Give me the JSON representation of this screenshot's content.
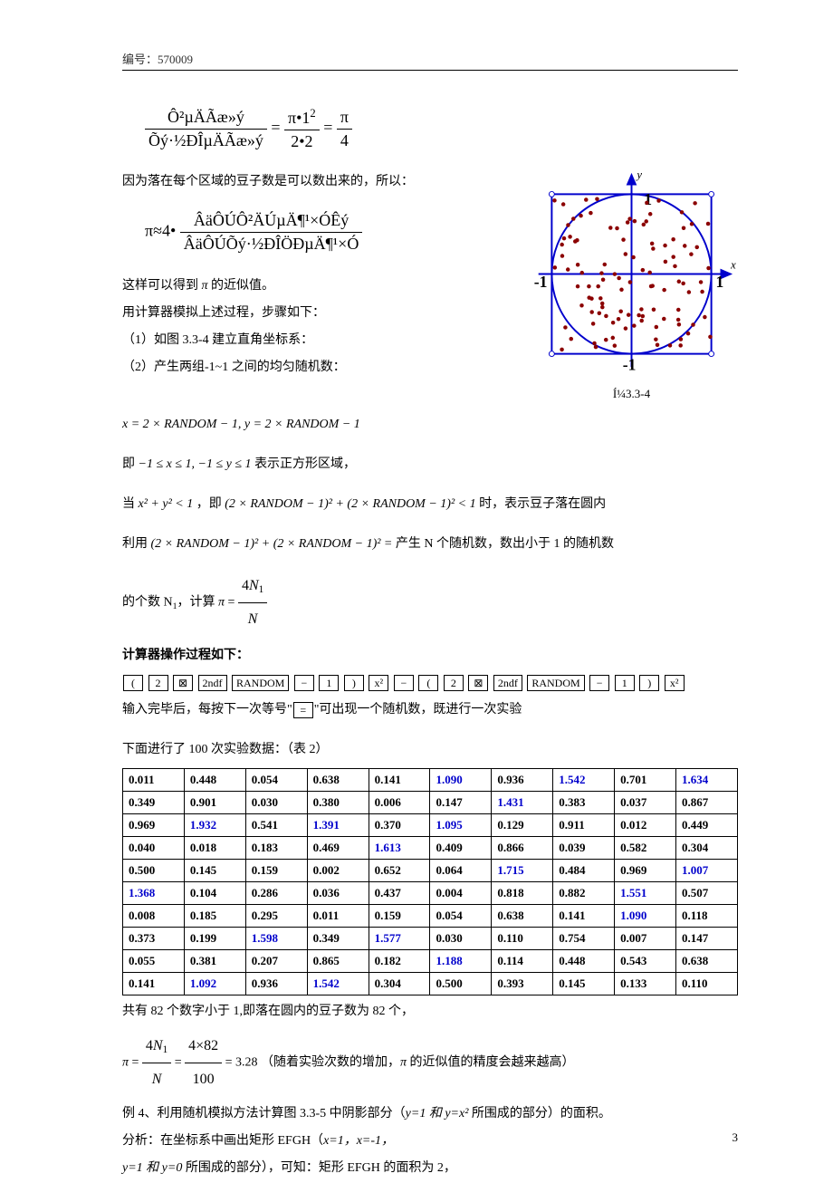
{
  "header": "编号：570009",
  "eq1": {
    "n1": "Ô²µÄÃæ»ý",
    "d1": "Õý·½ÐÎµÄÃæ»ý",
    "n2": "π•1",
    "d2": "2•2",
    "n3": "π",
    "d3": "4"
  },
  "p1": "因为落在每个区域的豆子数是可以数出来的，所以：",
  "eq2": {
    "pre": "π≈4•",
    "n": "ÂäÔÚÔ²ÄÚµÄ¶¹×ÓÊý",
    "d": "ÂäÔÚÕý·½ÐÎÖÐµÄ¶¹×Ó"
  },
  "p2a": "这样可以得到",
  "p2b": "的近似值。",
  "p3": "用计算器模拟上述过程，步骤如下：",
  "p4": "（1）如图 3.3-4 建立直角坐标系：",
  "p5": "（2）产生两组-1~1 之间的均匀随机数：",
  "eq3": "x = 2 × RANDOM − 1, y = 2 × RANDOM − 1",
  "p6a": "即",
  "p6b": "−1 ≤ x ≤ 1, −1 ≤ y ≤ 1",
  "p6c": "表示正方形区域，",
  "p7a": "当",
  "p7b": "x² + y² < 1",
  "p7c": "，即",
  "p7d": "(2 × RANDOM − 1)² + (2 × RANDOM − 1)² < 1",
  "p7e": "时，表示豆子落在圆内",
  "p8a": "利用",
  "p8b": "(2 × RANDOM − 1)² + (2 × RANDOM − 1)² =",
  "p8c": "产生 N 个随机数，数出小于 1 的随机数",
  "p9a": "的个数 N",
  "p9b": "，计算",
  "eq4": {
    "n": "4N₁",
    "d": "N"
  },
  "p10": "计算器操作过程如下：",
  "keySeq": [
    "(",
    "2",
    "⊠",
    "2ndf",
    "RANDOM",
    "−",
    "1",
    ")",
    "x²",
    "−",
    "(",
    "2",
    "⊠",
    "2ndf",
    "RANDOM",
    "−",
    "1",
    ")",
    "x²"
  ],
  "p11a": "输入完毕后，每按下一次等号\"",
  "p11b": "\"可出现一个随机数，既进行一次实验",
  "p12": "下面进行了 100 次实验数据：（表 2）",
  "table": {
    "rows": [
      [
        {
          "v": "0.011"
        },
        {
          "v": "0.448"
        },
        {
          "v": "0.054"
        },
        {
          "v": "0.638"
        },
        {
          "v": "0.141"
        },
        {
          "v": "1.090",
          "b": 1
        },
        {
          "v": "0.936"
        },
        {
          "v": "1.542",
          "b": 1
        },
        {
          "v": "0.701"
        },
        {
          "v": "1.634",
          "b": 1
        }
      ],
      [
        {
          "v": "0.349"
        },
        {
          "v": "0.901"
        },
        {
          "v": "0.030"
        },
        {
          "v": "0.380"
        },
        {
          "v": "0.006"
        },
        {
          "v": "0.147"
        },
        {
          "v": "1.431",
          "b": 1
        },
        {
          "v": "0.383"
        },
        {
          "v": "0.037"
        },
        {
          "v": "0.867"
        }
      ],
      [
        {
          "v": "0.969"
        },
        {
          "v": "1.932",
          "b": 1
        },
        {
          "v": "0.541"
        },
        {
          "v": "1.391",
          "b": 1
        },
        {
          "v": "0.370"
        },
        {
          "v": "1.095",
          "b": 1
        },
        {
          "v": "0.129"
        },
        {
          "v": "0.911"
        },
        {
          "v": "0.012"
        },
        {
          "v": "0.449"
        }
      ],
      [
        {
          "v": "0.040"
        },
        {
          "v": "0.018"
        },
        {
          "v": "0.183"
        },
        {
          "v": "0.469"
        },
        {
          "v": "1.613",
          "b": 1
        },
        {
          "v": "0.409"
        },
        {
          "v": "0.866"
        },
        {
          "v": "0.039"
        },
        {
          "v": "0.582"
        },
        {
          "v": "0.304"
        }
      ],
      [
        {
          "v": "0.500"
        },
        {
          "v": "0.145"
        },
        {
          "v": "0.159"
        },
        {
          "v": "0.002"
        },
        {
          "v": "0.652"
        },
        {
          "v": "0.064"
        },
        {
          "v": "1.715",
          "b": 1
        },
        {
          "v": "0.484"
        },
        {
          "v": "0.969"
        },
        {
          "v": "1.007",
          "b": 1
        }
      ],
      [
        {
          "v": "1.368",
          "b": 1
        },
        {
          "v": "0.104"
        },
        {
          "v": "0.286"
        },
        {
          "v": "0.036"
        },
        {
          "v": "0.437"
        },
        {
          "v": "0.004"
        },
        {
          "v": "0.818"
        },
        {
          "v": "0.882"
        },
        {
          "v": "1.551",
          "b": 1
        },
        {
          "v": "0.507"
        }
      ],
      [
        {
          "v": "0.008"
        },
        {
          "v": "0.185"
        },
        {
          "v": "0.295"
        },
        {
          "v": "0.011"
        },
        {
          "v": "0.159"
        },
        {
          "v": "0.054"
        },
        {
          "v": "0.638"
        },
        {
          "v": "0.141"
        },
        {
          "v": "1.090",
          "b": 1
        },
        {
          "v": "0.118"
        }
      ],
      [
        {
          "v": "0.373"
        },
        {
          "v": "0.199"
        },
        {
          "v": "1.598",
          "b": 1
        },
        {
          "v": "0.349"
        },
        {
          "v": "1.577",
          "b": 1
        },
        {
          "v": "0.030"
        },
        {
          "v": "0.110"
        },
        {
          "v": "0.754"
        },
        {
          "v": "0.007"
        },
        {
          "v": "0.147"
        }
      ],
      [
        {
          "v": "0.055"
        },
        {
          "v": "0.381"
        },
        {
          "v": "0.207"
        },
        {
          "v": "0.865"
        },
        {
          "v": "0.182"
        },
        {
          "v": "1.188",
          "b": 1
        },
        {
          "v": "0.114"
        },
        {
          "v": "0.448"
        },
        {
          "v": "0.543"
        },
        {
          "v": "0.638"
        }
      ],
      [
        {
          "v": "0.141"
        },
        {
          "v": "1.092",
          "b": 1
        },
        {
          "v": "0.936"
        },
        {
          "v": "1.542",
          "b": 1
        },
        {
          "v": "0.304"
        },
        {
          "v": "0.500"
        },
        {
          "v": "0.393"
        },
        {
          "v": "0.145"
        },
        {
          "v": "0.133"
        },
        {
          "v": "0.110"
        }
      ]
    ]
  },
  "p13": "共有 82 个数字小于 1,即落在圆内的豆子数为 82 个，",
  "eq5": {
    "n1": "4N₁",
    "d1": "N",
    "n2": "4×82",
    "d2": "100",
    "res": "= 3.28"
  },
  "p13b": "（随着实验次数的增加，",
  "p13c": "的近似值的精度会越来越高）",
  "p14a": "例 4、利用随机模拟方法计算图 3.3-5 中阴影部分（",
  "p14b": "y=1 和 y=x²",
  "p14c": " 所围成的部分）的面积。",
  "p15a": "分析：在坐标系中画出矩形 EFGH（",
  "p15b": "x=1，x=-1，",
  "p16a": "y=1 和 y=0",
  "p16b": " 所围成的部分），可知：矩形 EFGH 的面积为 2，",
  "figLabel": "Í¼3.3-4",
  "axis": {
    "x": "x",
    "y": "y",
    "p1": "1",
    "n1": "-1"
  },
  "pageNum": "3"
}
